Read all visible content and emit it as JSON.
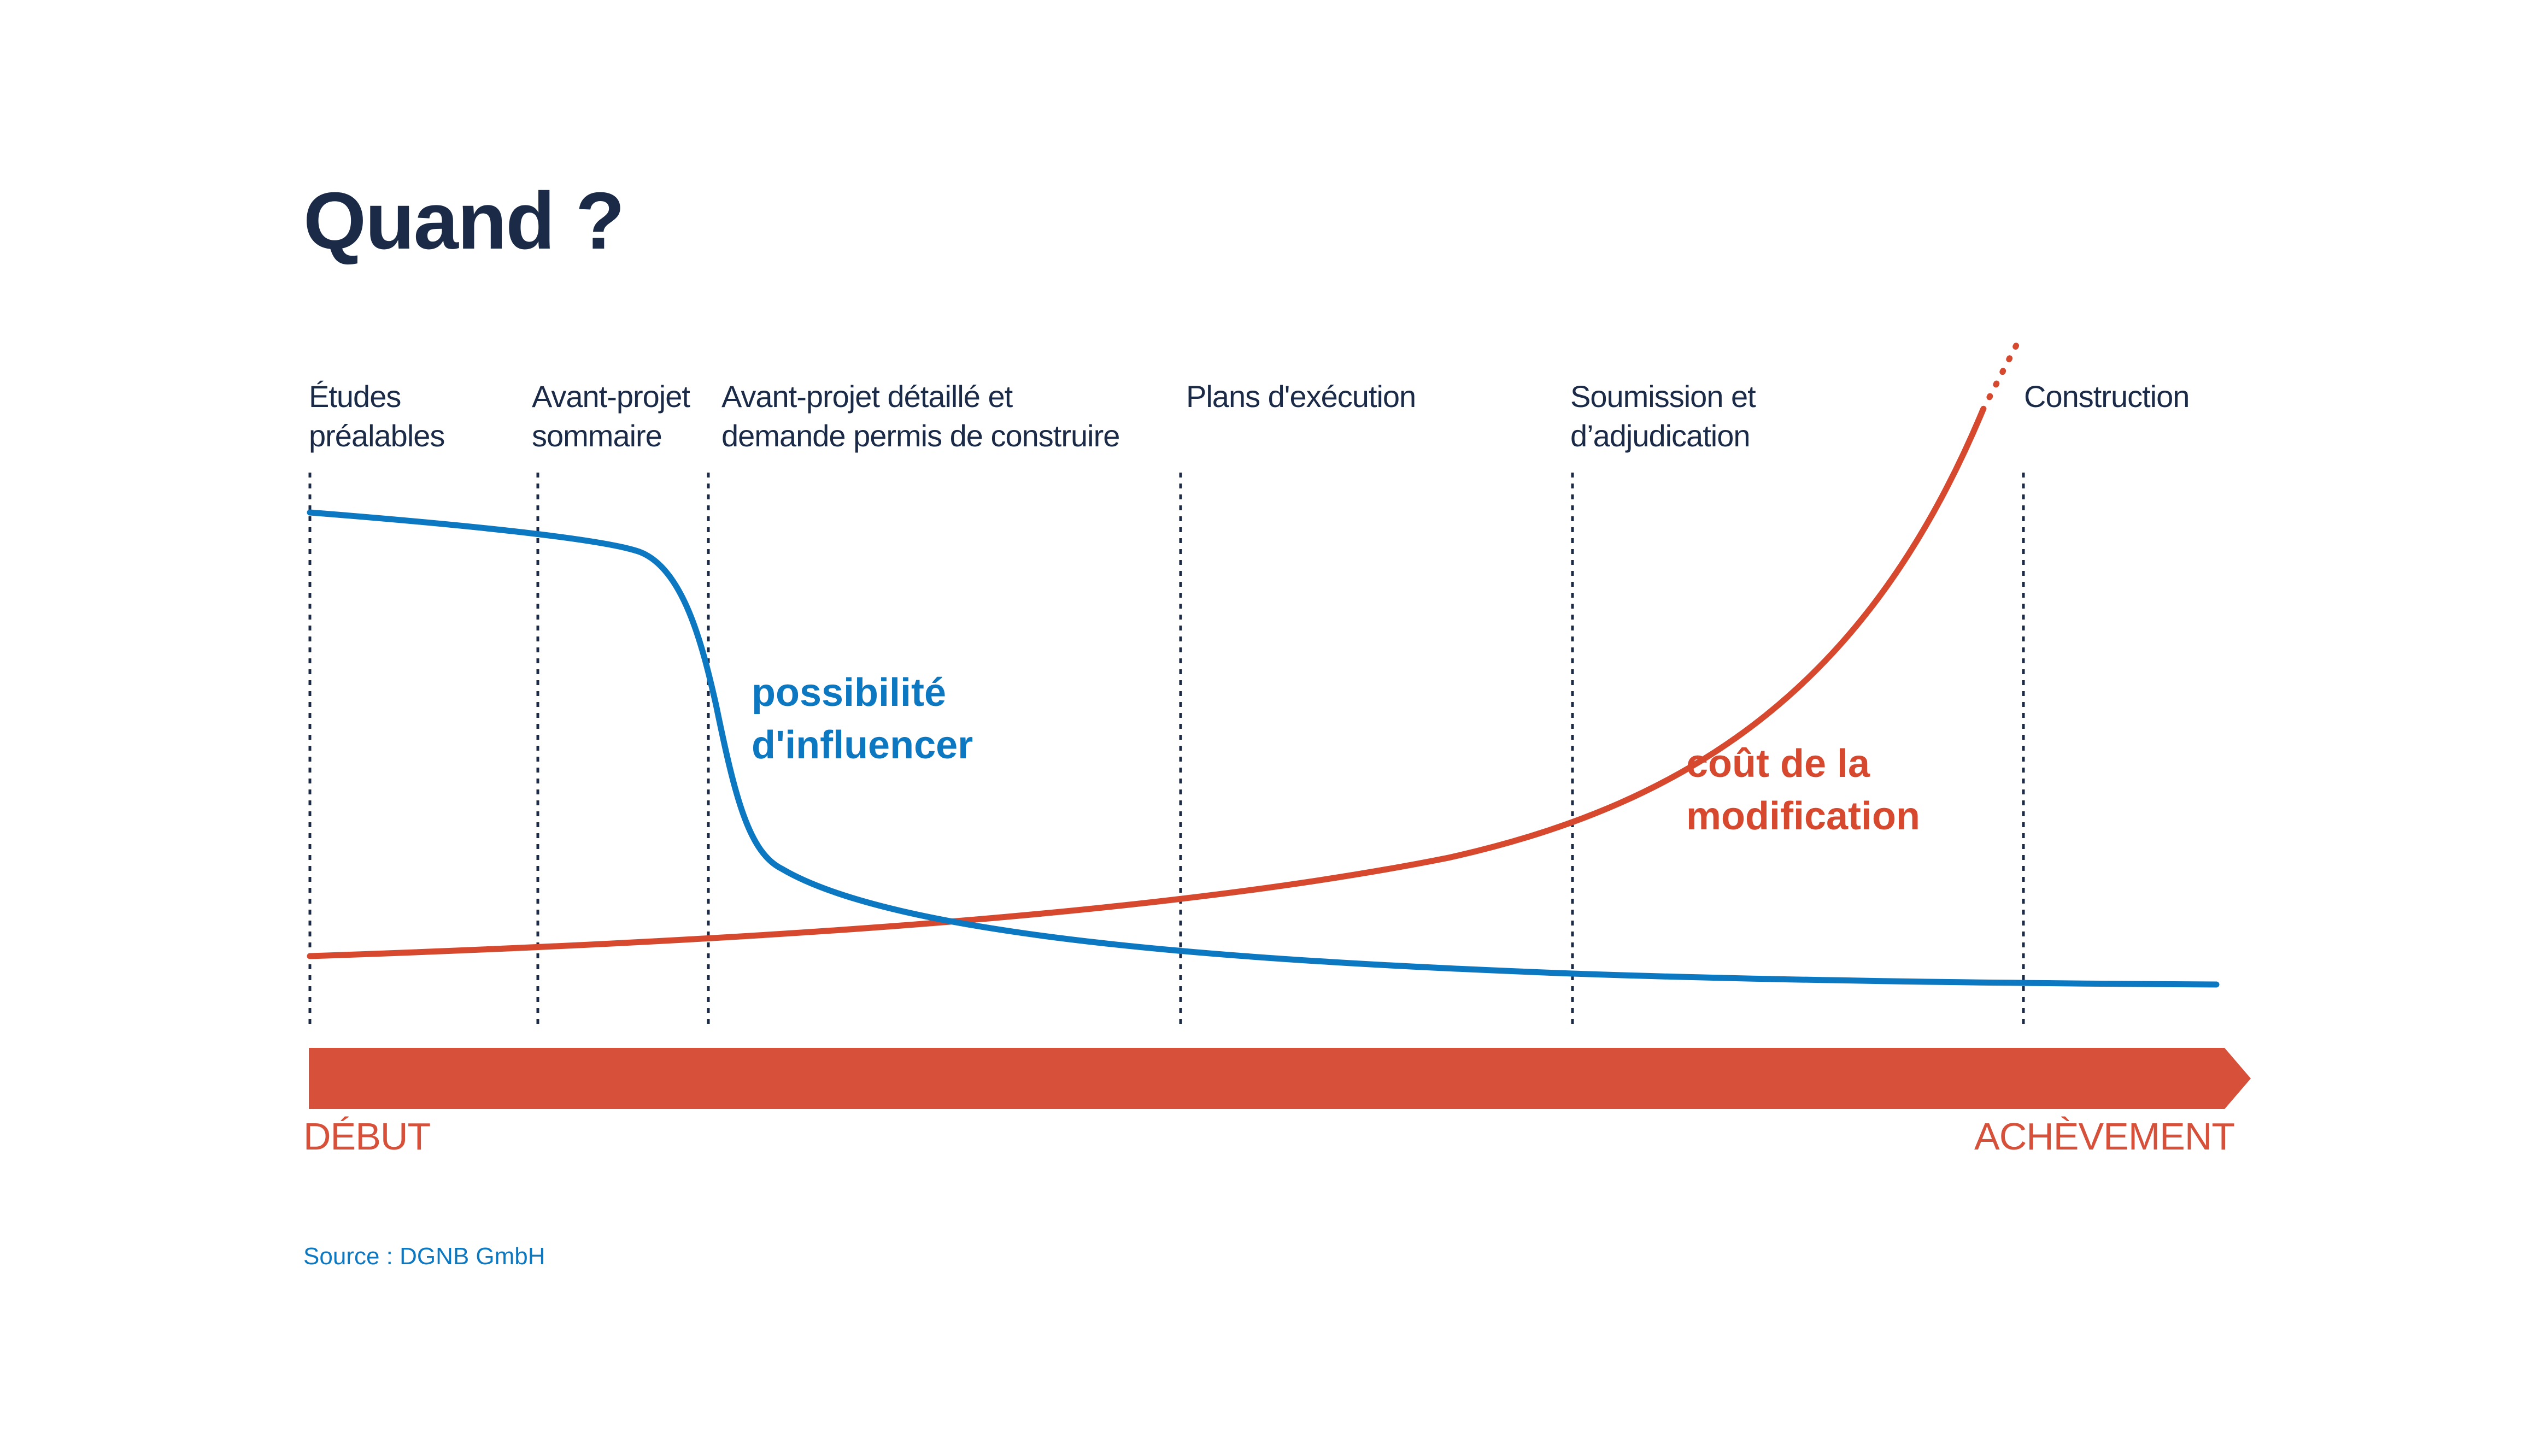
{
  "title": "Quand ?",
  "phases": [
    {
      "label": "Études préalables",
      "lines": [
        "Études",
        "préalables"
      ]
    },
    {
      "label": "Avant-projet sommaire",
      "lines": [
        "Avant-projet",
        "sommaire"
      ]
    },
    {
      "label": "Avant-projet détaillé et demande permis de construire",
      "lines": [
        "Avant-projet détaillé et",
        "demande permis de construire"
      ]
    },
    {
      "label": "Plans d'exécution",
      "lines": [
        "Plans d'exécution"
      ]
    },
    {
      "label": "Soumission et d'adjudication",
      "lines": [
        "Soumission et",
        "d’adjudication"
      ]
    },
    {
      "label": "Construction",
      "lines": [
        "Construction"
      ]
    }
  ],
  "curves": {
    "influence": {
      "label_lines": [
        "possibilité",
        "d'influencer"
      ],
      "color": "#0c78c2"
    },
    "cost": {
      "label_lines": [
        "coût de la",
        "modification"
      ],
      "color": "#d6492f"
    }
  },
  "timeline": {
    "start": "DÉBUT",
    "end": "ACHÈVEMENT",
    "color": "#d6503a"
  },
  "source": "Source : DGNB GmbH",
  "colors": {
    "title": "#1a2a47",
    "blue": "#0c78c2",
    "red": "#d6492f",
    "divider": "#1a2a47"
  }
}
